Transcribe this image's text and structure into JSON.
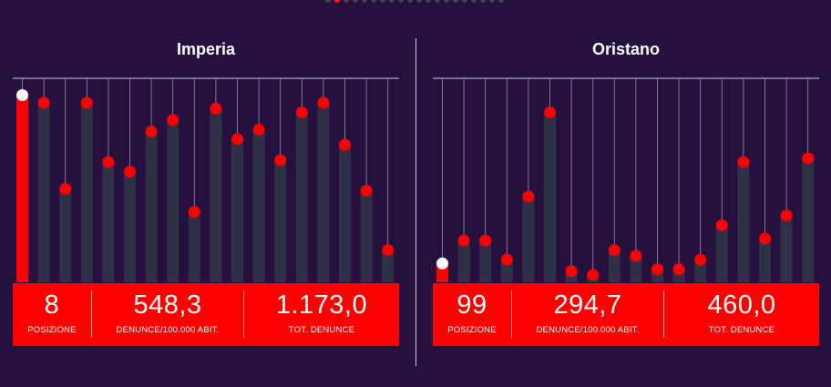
{
  "pagination": {
    "count": 20,
    "active_index": 1
  },
  "colors": {
    "background": "#26103d",
    "accent": "#ff0000",
    "bar": "#2e3145",
    "marker_active": "#ffffff"
  },
  "panels": [
    {
      "title": "Imperia",
      "stats": {
        "posizione": {
          "value": "8",
          "label": "POSIZIONE"
        },
        "denunce_rate": {
          "value": "548,3",
          "label": "DENUNCE/100.000 ABIT."
        },
        "tot_denunce": {
          "value": "1.173,0",
          "label": "TOT. DENUNCE"
        }
      }
    },
    {
      "title": "Oristano",
      "stats": {
        "posizione": {
          "value": "99",
          "label": "POSIZIONE"
        },
        "denunce_rate": {
          "value": "294,7",
          "label": "DENUNCE/100.000 ABIT."
        },
        "tot_denunce": {
          "value": "460,0",
          "label": "TOT. DENUNCE"
        }
      }
    }
  ],
  "chart_data": [
    {
      "type": "bar",
      "title": "Imperia",
      "ylim": [
        0,
        100
      ],
      "highlight_index": 0,
      "values": [
        95,
        91,
        46,
        91,
        60,
        55,
        76,
        82,
        34,
        88,
        72,
        77,
        61,
        86,
        91,
        69,
        45,
        14
      ]
    },
    {
      "type": "bar",
      "title": "Oristano",
      "ylim": [
        0,
        100
      ],
      "highlight_index": 0,
      "values": [
        7,
        19,
        19,
        9,
        42,
        86,
        3,
        1,
        14,
        11,
        4,
        4,
        9,
        27,
        60,
        20,
        32,
        62
      ]
    }
  ]
}
